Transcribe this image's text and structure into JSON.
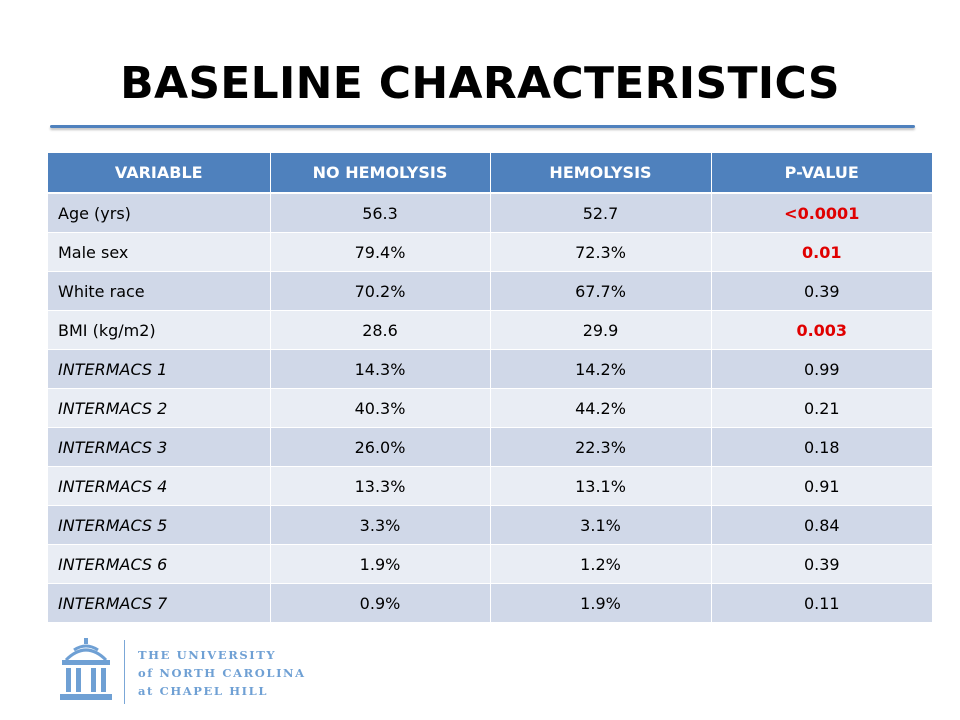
{
  "slide": {
    "title": "BASELINE CHARACTERISTICS"
  },
  "table": {
    "headers": [
      "VARIABLE",
      "NO HEMOLYSIS",
      "HEMOLYSIS",
      "P-VALUE"
    ],
    "rows": [
      {
        "variable": "Age (yrs)",
        "no_hemolysis": "56.3",
        "hemolysis": "52.7",
        "p_value": "<0.0001",
        "significant": true,
        "italic": false
      },
      {
        "variable": "Male sex",
        "no_hemolysis": "79.4%",
        "hemolysis": "72.3%",
        "p_value": "0.01",
        "significant": true,
        "italic": false
      },
      {
        "variable": "White race",
        "no_hemolysis": "70.2%",
        "hemolysis": "67.7%",
        "p_value": "0.39",
        "significant": false,
        "italic": false
      },
      {
        "variable": "BMI (kg/m2)",
        "no_hemolysis": "28.6",
        "hemolysis": "29.9",
        "p_value": "0.003",
        "significant": true,
        "italic": false
      },
      {
        "variable": "INTERMACS 1",
        "no_hemolysis": "14.3%",
        "hemolysis": "14.2%",
        "p_value": "0.99",
        "significant": false,
        "italic": true
      },
      {
        "variable": "INTERMACS 2",
        "no_hemolysis": "40.3%",
        "hemolysis": "44.2%",
        "p_value": "0.21",
        "significant": false,
        "italic": true
      },
      {
        "variable": "INTERMACS 3",
        "no_hemolysis": "26.0%",
        "hemolysis": "22.3%",
        "p_value": "0.18",
        "significant": false,
        "italic": true
      },
      {
        "variable": "INTERMACS 4",
        "no_hemolysis": "13.3%",
        "hemolysis": "13.1%",
        "p_value": "0.91",
        "significant": false,
        "italic": true
      },
      {
        "variable": "INTERMACS 5",
        "no_hemolysis": "3.3%",
        "hemolysis": "3.1%",
        "p_value": "0.84",
        "significant": false,
        "italic": true
      },
      {
        "variable": "INTERMACS 6",
        "no_hemolysis": "1.9%",
        "hemolysis": "1.2%",
        "p_value": "0.39",
        "significant": false,
        "italic": true
      },
      {
        "variable": "INTERMACS 7",
        "no_hemolysis": "0.9%",
        "hemolysis": "1.9%",
        "p_value": "0.11",
        "significant": false,
        "italic": true
      }
    ]
  },
  "logo": {
    "icon": "old-well-icon",
    "line1": "THE UNIVERSITY",
    "line2": "of NORTH CAROLINA",
    "line3": "at CHAPEL HILL"
  },
  "colors": {
    "header_bg": "#4f81bd",
    "row_odd": "#d0d8e8",
    "row_even": "#e9edf4",
    "significant": "#e00000",
    "logo": "#6fa0d4"
  }
}
